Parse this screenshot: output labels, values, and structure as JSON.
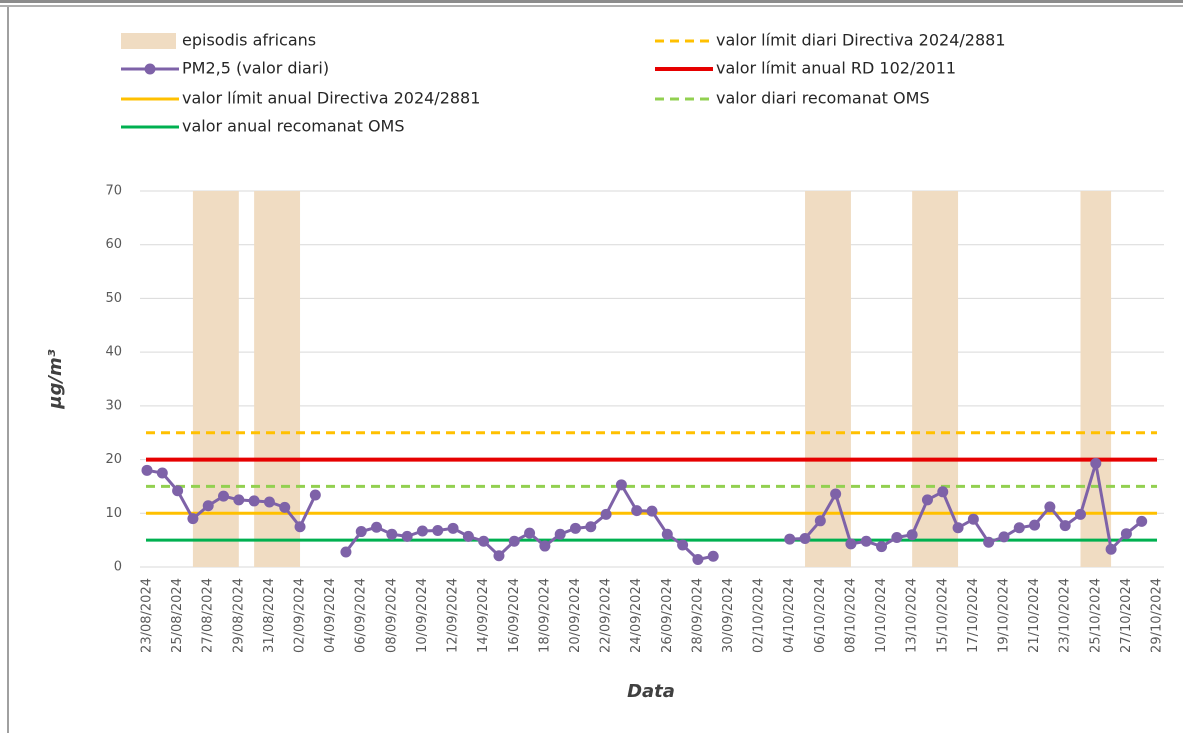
{
  "chart_data": {
    "type": "line",
    "y_label": "μg/m³",
    "x_label": "Data",
    "categories": [
      "23/08/2024",
      null,
      "25/08/2024",
      null,
      "27/08/2024",
      null,
      "29/08/2024",
      null,
      "31/08/2024",
      null,
      "02/09/2024",
      null,
      "04/09/2024",
      null,
      "06/09/2024",
      null,
      "08/09/2024",
      null,
      "10/09/2024",
      null,
      "12/09/2024",
      null,
      "14/09/2024",
      null,
      "16/09/2024",
      null,
      "18/09/2024",
      null,
      "20/09/2024",
      null,
      "22/09/2024",
      null,
      "24/09/2024",
      null,
      "26/09/2024",
      null,
      "28/09/2024",
      null,
      "30/09/2024",
      null,
      "02/10/2024",
      null,
      "04/10/2024",
      null,
      "06/10/2024",
      null,
      "08/10/2024",
      null,
      "10/10/2024",
      null,
      "13/10/2024",
      null,
      "15/10/2024",
      null,
      "17/10/2024",
      null,
      "19/10/2024",
      null,
      "21/10/2024",
      null,
      "23/10/2024",
      null,
      "25/10/2024",
      null,
      "27/10/2024",
      null,
      "29/10/2024"
    ],
    "series": [
      {
        "name": "episodis africans",
        "type": "bar",
        "color": "#f0dcc2",
        "values": [
          null,
          null,
          null,
          null,
          70,
          70,
          null,
          null,
          70,
          70,
          null,
          null,
          null,
          null,
          null,
          null,
          null,
          null,
          null,
          null,
          null,
          null,
          null,
          null,
          null,
          null,
          null,
          null,
          null,
          null,
          null,
          null,
          null,
          null,
          null,
          null,
          null,
          null,
          null,
          null,
          null,
          null,
          null,
          null,
          70,
          70,
          null,
          null,
          null,
          null,
          null,
          70,
          70,
          null,
          null,
          null,
          null,
          null,
          null,
          null,
          null,
          null,
          70,
          null,
          null,
          null,
          null
        ]
      },
      {
        "name": "PM2,5 (valor diari)",
        "type": "line",
        "color": "#7e62a8",
        "values": [
          18,
          17.5,
          14.2,
          9,
          11.4,
          13.2,
          12.5,
          12.3,
          12.1,
          11.1,
          7.5,
          13.4,
          null,
          2.8,
          6.6,
          7.4,
          6.1,
          5.7,
          6.7,
          6.8,
          7.2,
          5.7,
          4.8,
          2.1,
          4.8,
          6.3,
          3.9,
          6.1,
          7.2,
          7.5,
          9.8,
          15.3,
          10.5,
          10.4,
          6.1,
          4.1,
          1.4,
          2,
          null,
          null,
          null,
          null,
          5.2,
          5.3,
          8.6,
          13.6,
          4.3,
          4.8,
          3.8,
          5.5,
          6,
          12.5,
          14,
          7.3,
          8.9,
          4.6,
          5.6,
          7.3,
          7.8,
          11.2,
          7.7,
          9.8,
          19.3,
          3.3,
          6.2,
          8.5,
          null
        ]
      }
    ],
    "reference_lines": [
      {
        "name": "valor límit diari Directiva 2024/2881",
        "value": 25,
        "color": "#ffc000",
        "dashed": true
      },
      {
        "name": "valor límit anual RD 102/2011",
        "value": 20,
        "color": "#e60000",
        "dashed": false
      },
      {
        "name": "valor límit anual Directiva 2024/2881",
        "value": 10,
        "color": "#ffc000",
        "dashed": false
      },
      {
        "name": "valor diari recomanat OMS",
        "value": 15,
        "color": "#92d050",
        "dashed": true
      },
      {
        "name": "valor anual recomanat OMS",
        "value": 5,
        "color": "#00b050",
        "dashed": false
      }
    ],
    "ylim": [
      0,
      70
    ],
    "yticks": [
      0,
      10,
      20,
      30,
      40,
      50,
      60,
      70
    ],
    "grid": true
  }
}
